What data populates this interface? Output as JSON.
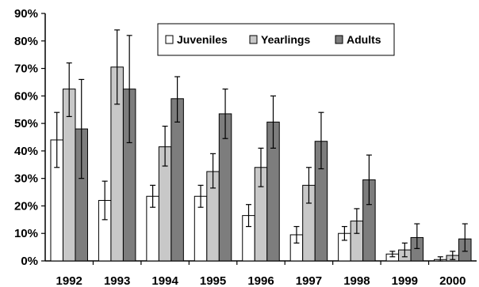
{
  "chart_data": {
    "type": "bar",
    "categories": [
      "1992",
      "1993",
      "1994",
      "1995",
      "1996",
      "1997",
      "1998",
      "1999",
      "2000"
    ],
    "series": [
      {
        "name": "Juveniles",
        "color": "#ffffff",
        "values": [
          44,
          22,
          23.5,
          23.5,
          16.5,
          9.5,
          10,
          2.5,
          0.5
        ],
        "error": [
          [
            34,
            54
          ],
          [
            15,
            29
          ],
          [
            19.5,
            27.5
          ],
          [
            19.5,
            27.5
          ],
          [
            12.5,
            20.5
          ],
          [
            6.5,
            12.5
          ],
          [
            7.5,
            12.5
          ],
          [
            1.5,
            3.5
          ],
          [
            0,
            1.5
          ]
        ]
      },
      {
        "name": "Yearlings",
        "color": "#c8c8c8",
        "values": [
          62.5,
          70.5,
          41.5,
          32.5,
          34,
          27.5,
          14.5,
          4,
          2
        ],
        "error": [
          [
            52.5,
            72
          ],
          [
            57,
            84
          ],
          [
            34.5,
            49
          ],
          [
            26.5,
            39
          ],
          [
            27,
            41
          ],
          [
            21,
            34
          ],
          [
            10,
            19
          ],
          [
            1.5,
            6.5
          ],
          [
            0.5,
            3.5
          ]
        ]
      },
      {
        "name": "Adults",
        "color": "#7d7d7d",
        "values": [
          48,
          62.5,
          59,
          53.5,
          50.5,
          43.5,
          29.5,
          8.5,
          8
        ],
        "error": [
          [
            30,
            66
          ],
          [
            43,
            82
          ],
          [
            50.5,
            67
          ],
          [
            44.5,
            62.5
          ],
          [
            41,
            60
          ],
          [
            33.5,
            54
          ],
          [
            20.5,
            38.5
          ],
          [
            4.5,
            13.5
          ],
          [
            3.5,
            13.5
          ]
        ]
      }
    ],
    "ylim": [
      0,
      90
    ],
    "y_ticks": [
      "0%",
      "10%",
      "20%",
      "30%",
      "40%",
      "50%",
      "60%",
      "70%",
      "80%",
      "90%"
    ],
    "y_unit": "%",
    "grid": false,
    "legend_position": "top-center"
  }
}
